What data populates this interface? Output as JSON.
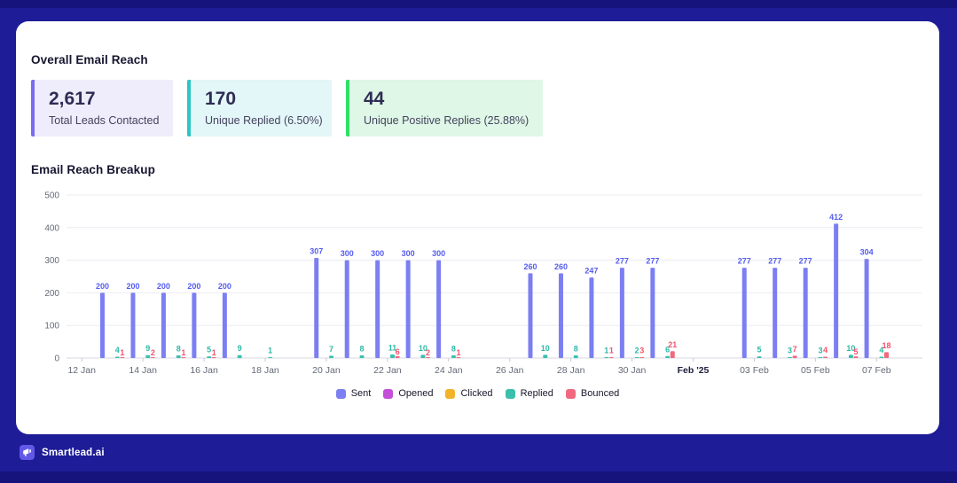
{
  "header": {
    "title": "Overall Email Reach"
  },
  "stats": [
    {
      "value": "2,617",
      "label": "Total Leads Contacted",
      "accent": "#7A6BEF",
      "bg": "#EFEDFB"
    },
    {
      "value": "170",
      "label": "Unique Replied (6.50%)",
      "accent": "#2EC5C5",
      "bg": "#E3F6F8"
    },
    {
      "value": "44",
      "label": "Unique Positive Replies (25.88%)",
      "accent": "#30E069",
      "bg": "#DFF7E6"
    }
  ],
  "chart_section": {
    "title": "Email Reach Breakup"
  },
  "chart_data": {
    "type": "bar",
    "title": "Email Reach Breakup",
    "xlabel": "",
    "ylabel": "",
    "ylim": [
      0,
      500
    ],
    "yticks": [
      0,
      100,
      200,
      300,
      400,
      500
    ],
    "grid": true,
    "legend_position": "bottom",
    "series_colors": {
      "sent": "#7B7FF2",
      "opened": "#C44FD8",
      "clicked": "#F2B32B",
      "replied": "#3BBFAD",
      "bounced": "#F0697F"
    },
    "label_colors": {
      "sent": "#555CEE",
      "replied": "#2CB9A6",
      "bounced": "#F4516C"
    },
    "axis_colors": {
      "tick_text": "#646A78",
      "bold_tick_text": "#20203E",
      "grid": "#ECECF3",
      "axis": "#D7D7E2"
    },
    "legend": [
      {
        "key": "sent",
        "label": "Sent"
      },
      {
        "key": "opened",
        "label": "Opened"
      },
      {
        "key": "clicked",
        "label": "Clicked"
      },
      {
        "key": "replied",
        "label": "Replied"
      },
      {
        "key": "bounced",
        "label": "Bounced"
      }
    ],
    "days": [
      {
        "label": "12 Jan",
        "tick": true
      },
      {
        "label": "13 Jan",
        "sent": 200,
        "replied": 4,
        "bounced": 1
      },
      {
        "label": "14 Jan",
        "tick": true,
        "sent": 200,
        "replied": 9,
        "bounced": 2
      },
      {
        "label": "15 Jan",
        "sent": 200,
        "replied": 8,
        "bounced": 1
      },
      {
        "label": "16 Jan",
        "tick": true,
        "sent": 200,
        "replied": 5,
        "bounced": 1
      },
      {
        "label": "17 Jan",
        "sent": 200,
        "replied": 9
      },
      {
        "label": "18 Jan",
        "tick": true,
        "replied": 1
      },
      {
        "label": "19 Jan"
      },
      {
        "label": "20 Jan",
        "tick": true,
        "sent": 307,
        "replied": 7
      },
      {
        "label": "21 Jan",
        "sent": 300,
        "replied": 8
      },
      {
        "label": "22 Jan",
        "tick": true,
        "sent": 300,
        "replied": 11,
        "bounced": 6
      },
      {
        "label": "23 Jan",
        "sent": 300,
        "replied": 10,
        "bounced": 2
      },
      {
        "label": "24 Jan",
        "tick": true,
        "sent": 300,
        "replied": 8,
        "bounced": 1
      },
      {
        "label": "25 Jan"
      },
      {
        "label": "26 Jan",
        "tick": true
      },
      {
        "label": "27 Jan",
        "sent": 260,
        "replied": 10
      },
      {
        "label": "28 Jan",
        "tick": true,
        "sent": 260,
        "replied": 8
      },
      {
        "label": "29 Jan",
        "sent": 247,
        "replied": 1,
        "bounced": 1
      },
      {
        "label": "30 Jan",
        "tick": true,
        "sent": 277,
        "replied": 2,
        "bounced": 3
      },
      {
        "label": "31 Jan",
        "sent": 277,
        "replied": 6,
        "bounced": 21
      },
      {
        "label": "Feb '25",
        "tick": true,
        "bold": true
      },
      {
        "label": "02 Feb"
      },
      {
        "label": "03 Feb",
        "tick": true,
        "sent": 277,
        "replied": 5
      },
      {
        "label": "04 Feb",
        "sent": 277,
        "replied": 3,
        "bounced": 7
      },
      {
        "label": "05 Feb",
        "tick": true,
        "sent": 277,
        "replied": 3,
        "bounced": 4
      },
      {
        "label": "06 Feb",
        "sent": 412,
        "replied": 10,
        "bounced": 5
      },
      {
        "label": "07 Feb",
        "tick": true,
        "sent": 304,
        "replied": 4,
        "bounced": 18
      },
      {
        "label": "08 Feb"
      }
    ]
  },
  "footer": {
    "brand": "Smartlead.ai"
  },
  "theme": {
    "page_bg": "#1E1C96",
    "frame_bg": "#16137D",
    "card_bg": "#FFFFFF"
  }
}
